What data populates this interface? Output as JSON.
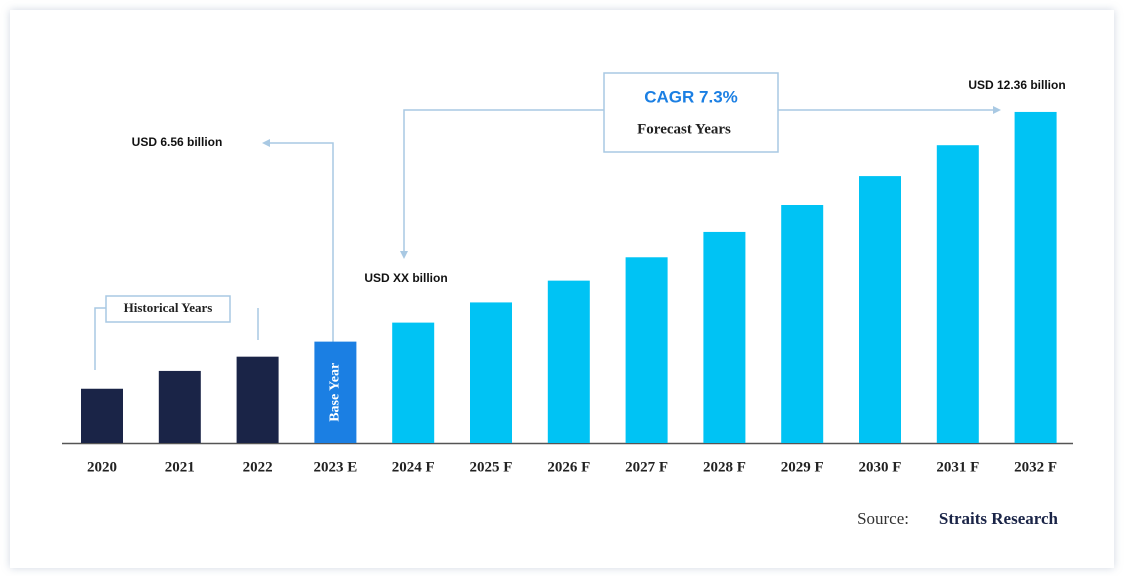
{
  "chart_data": {
    "type": "bar",
    "categories": [
      "2020",
      "2021",
      "2022",
      "2023 E",
      "2024 F",
      "2025 F",
      "2026 F",
      "2027 F",
      "2028 F",
      "2029 F",
      "2030 F",
      "2031 F",
      "2032 F"
    ],
    "values": [
      5.37,
      5.82,
      6.18,
      6.56,
      7.04,
      7.55,
      8.1,
      8.69,
      9.33,
      10.01,
      10.74,
      11.52,
      12.36
    ],
    "value_labels": [
      null,
      null,
      null,
      "USD 6.56 billion",
      null,
      null,
      null,
      null,
      null,
      null,
      null,
      null,
      "USD 12.36 billion"
    ],
    "colors": [
      "#1a2447",
      "#1a2447",
      "#1a2447",
      "#1b7fe3",
      "#00c3f4",
      "#00c3f4",
      "#00c3f4",
      "#00c3f4",
      "#00c3f4",
      "#00c3f4",
      "#00c3f4",
      "#00c3f4",
      "#00c3f4"
    ],
    "ylim": [
      4,
      13
    ],
    "annotations": {
      "historical": "Historical Years",
      "base_year": "Base Year",
      "cagr": "CAGR 7.3%",
      "forecast": "Forecast Years",
      "forecast_start": "USD XX billion"
    },
    "source": {
      "label": "Source:",
      "name": "Straits Research"
    }
  }
}
